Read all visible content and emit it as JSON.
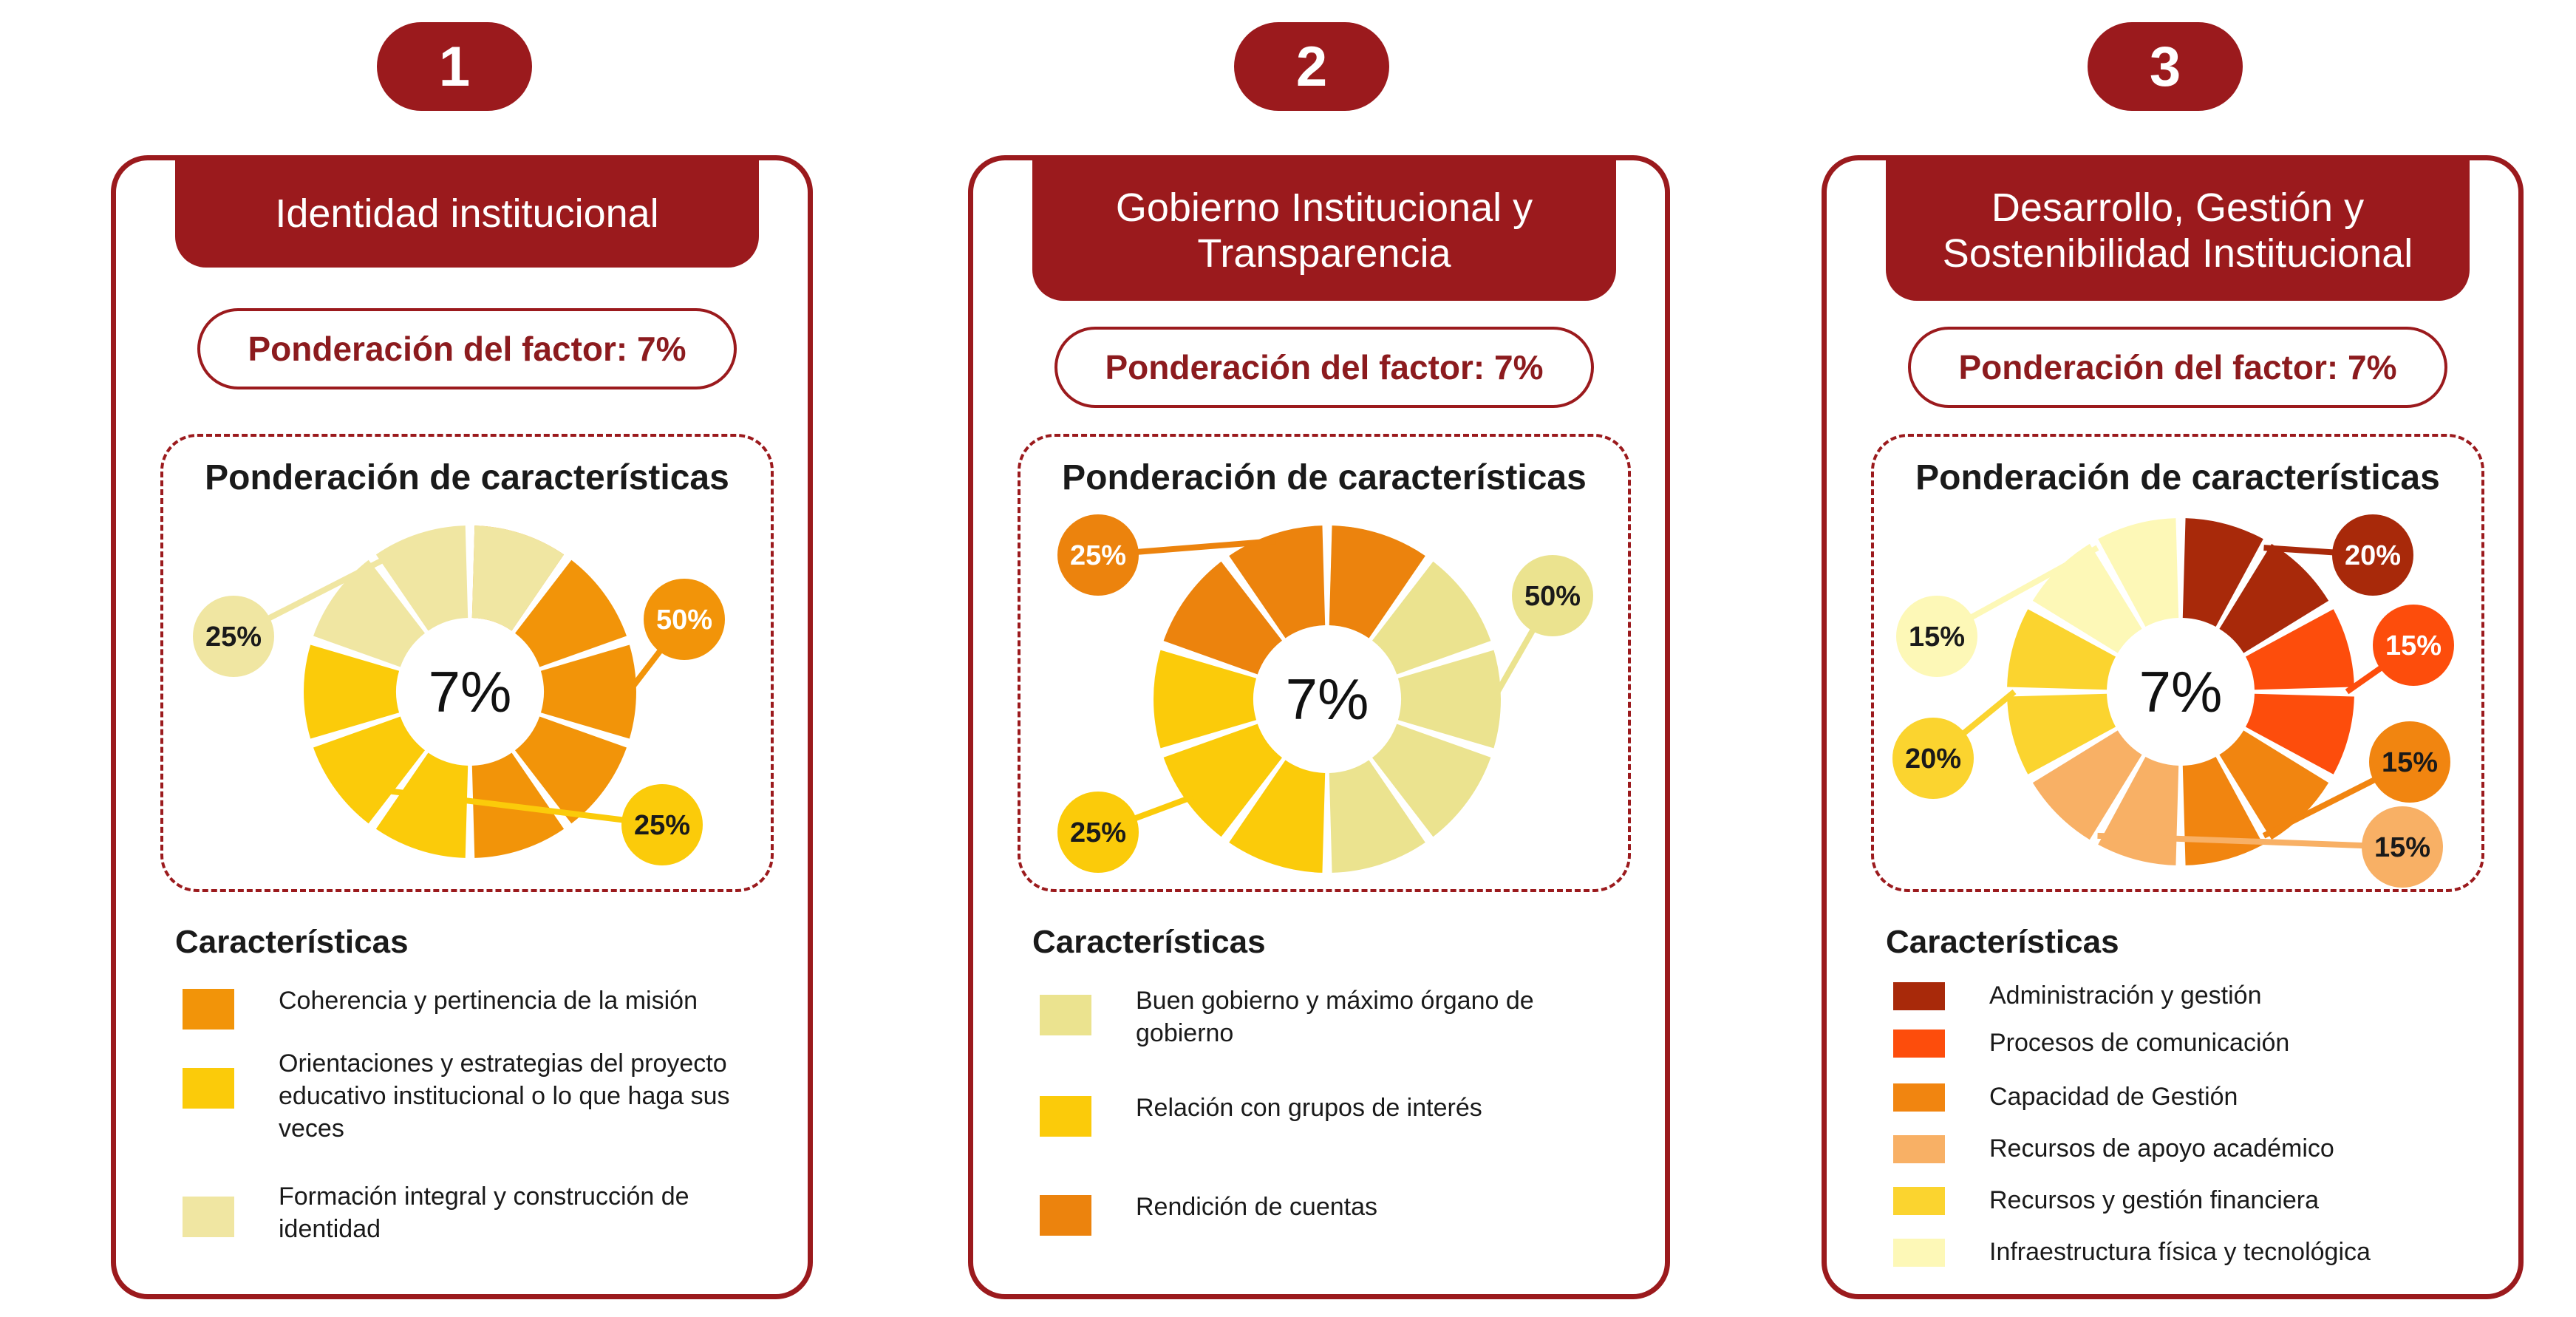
{
  "colors": {
    "brand": "#9b1a1d"
  },
  "factors": [
    {
      "number": "1",
      "title": "Identidad institucional",
      "factor_label": "Ponderación del factor: 7%",
      "chart_title": "Ponderación de características",
      "legend_title": "Características",
      "characteristics": [
        {
          "label": "Coherencia y pertinencia de la misión",
          "color": "#f29409"
        },
        {
          "label": "Orientaciones y estrategias del proyecto educativo institucional o lo que haga sus veces",
          "color": "#fbcb0a"
        },
        {
          "label": "Formación integral y construcción de identidad",
          "color": "#f0e6a2"
        }
      ]
    },
    {
      "number": "2",
      "title": "Gobierno Institucional y Transparencia",
      "factor_label": "Ponderación del factor: 7%",
      "chart_title": "Ponderación de características",
      "legend_title": "Características",
      "characteristics": [
        {
          "label": "Buen gobierno y máximo órgano de gobierno",
          "color": "#ebe38f"
        },
        {
          "label": "Relación con grupos de interés",
          "color": "#fbcb0a"
        },
        {
          "label": "Rendición de cuentas",
          "color": "#ec830d"
        }
      ]
    },
    {
      "number": "3",
      "title": "Desarrollo, Gestión y Sostenibilidad Institucional",
      "factor_label": "Ponderación del factor: 7%",
      "chart_title": "Ponderación de características",
      "legend_title": "Características",
      "characteristics": [
        {
          "label": "Administración y gestión",
          "color": "#a8290a"
        },
        {
          "label": "Procesos de comunicación",
          "color": "#fd4d0c"
        },
        {
          "label": "Capacidad de Gestión",
          "color": "#f18510"
        },
        {
          "label": "Recursos de apoyo académico",
          "color": "#f8b065"
        },
        {
          "label": "Recursos y gestión financiera",
          "color": "#fbd42f"
        },
        {
          "label": "Infraestructura física y tecnológica",
          "color": "#fdf8b7"
        }
      ]
    }
  ],
  "chart_data": [
    {
      "type": "pie",
      "title": "Ponderación de características",
      "center_label": "7%",
      "categories": [
        "Coherencia y pertinencia de la misión",
        "Orientaciones y estrategias del proyecto educativo institucional o lo que haga sus veces",
        "Formación integral y construcción de identidad"
      ],
      "values": [
        50,
        25,
        25
      ],
      "labels": [
        "50%",
        "25%",
        "25%"
      ],
      "colors": [
        "#f29409",
        "#fbcb0a",
        "#f0e6a2"
      ],
      "bubble_colors": [
        "#f29409",
        "#fbcb0a",
        "#f0e6a2"
      ],
      "label_text_colors": [
        "#ffffff",
        "#1a1a1a",
        "#1a1a1a"
      ]
    },
    {
      "type": "pie",
      "title": "Ponderación de características",
      "center_label": "7%",
      "categories": [
        "Buen gobierno y máximo órgano de gobierno",
        "Relación con grupos de interés",
        "Rendición de cuentas"
      ],
      "values": [
        50,
        25,
        25
      ],
      "labels": [
        "50%",
        "25%",
        "25%"
      ],
      "colors": [
        "#ebe38f",
        "#fbcb0a",
        "#ec830d"
      ],
      "bubble_colors": [
        "#ebe38f",
        "#fbcb0a",
        "#ec830d"
      ],
      "label_text_colors": [
        "#1a1a1a",
        "#1a1a1a",
        "#ffffff"
      ]
    },
    {
      "type": "pie",
      "title": "Ponderación de características",
      "center_label": "7%",
      "categories": [
        "Administración y gestión",
        "Procesos de comunicación",
        "Capacidad de Gestión",
        "Recursos de apoyo académico",
        "Recursos y gestión financiera",
        "Infraestructura física y tecnológica"
      ],
      "values": [
        20,
        15,
        15,
        15,
        20,
        15
      ],
      "labels": [
        "20%",
        "15%",
        "15%",
        "15%",
        "20%",
        "15%"
      ],
      "colors": [
        "#a8290a",
        "#fd4d0c",
        "#f18510",
        "#f8b065",
        "#fbd42f",
        "#fdf8b7"
      ],
      "bubble_colors": [
        "#a8290a",
        "#fd4d0c",
        "#f18510",
        "#f8b065",
        "#fbd42f",
        "#fdf8b7"
      ],
      "label_text_colors": [
        "#ffffff",
        "#ffffff",
        "#1a1a1a",
        "#1a1a1a",
        "#1a1a1a",
        "#1a1a1a"
      ]
    }
  ]
}
